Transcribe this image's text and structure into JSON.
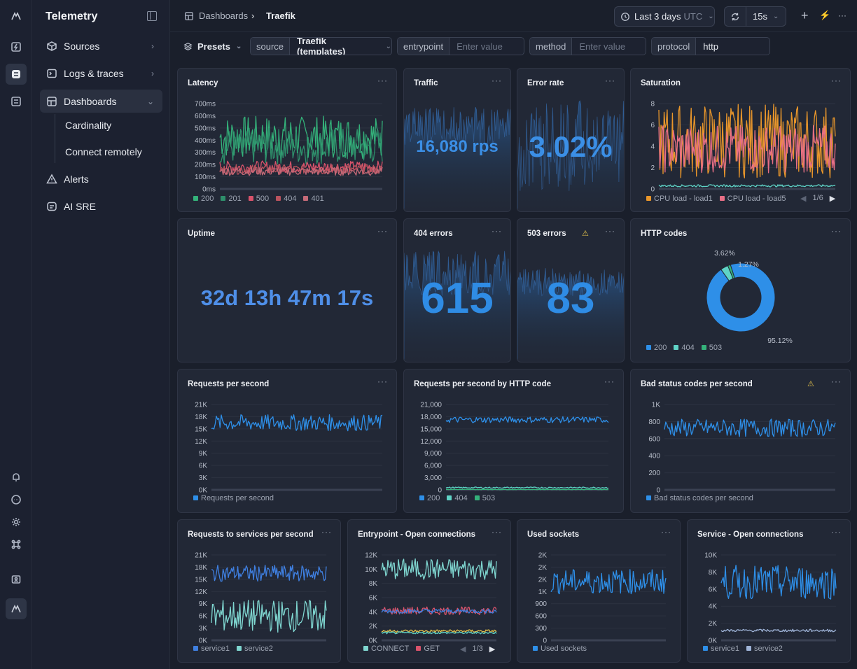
{
  "app": {
    "title": "Telemetry"
  },
  "nav": {
    "items": [
      {
        "label": "Sources",
        "chevron": "›"
      },
      {
        "label": "Logs & traces",
        "chevron": "›"
      },
      {
        "label": "Dashboards",
        "chevron": "⌄"
      },
      {
        "label": "Alerts"
      },
      {
        "label": "AI SRE"
      }
    ],
    "sub": [
      "Cardinality",
      "Connect remotely"
    ]
  },
  "breadcrumb": {
    "root": "Dashboards",
    "sep": "›",
    "current": "Traefik"
  },
  "toolbar": {
    "time": "Last 3 days",
    "tz": "UTC",
    "refresh": "15s",
    "plus": "+",
    "bolt": "⚡",
    "more": "···"
  },
  "filters": {
    "presets": "Presets",
    "chev": "⌄",
    "items": [
      {
        "key": "source",
        "value": "Traefik (templates)",
        "placeholder": ""
      },
      {
        "key": "entrypoint",
        "value": "",
        "placeholder": "Enter value"
      },
      {
        "key": "method",
        "value": "",
        "placeholder": "Enter value"
      },
      {
        "key": "protocol",
        "value": "http",
        "placeholder": ""
      }
    ]
  },
  "colors": {
    "blue": "#3b8fe6",
    "teal": "#5fd3c6",
    "green": "#34b27a",
    "red": "#d9536b",
    "orange": "#e8962b",
    "pink": "#e86f86",
    "yellow": "#e0c04a",
    "navy": "#2d6fd1"
  },
  "panels": {
    "latency": {
      "title": "Latency",
      "menu": "···"
    },
    "traffic": {
      "title": "Traffic",
      "menu": "···",
      "value": "16,080 rps"
    },
    "error_rate": {
      "title": "Error rate",
      "menu": "···",
      "value": "3.02%"
    },
    "saturation": {
      "title": "Saturation",
      "menu": "···",
      "pager": "1/6"
    },
    "uptime": {
      "title": "Uptime",
      "menu": "···",
      "value": "32d 13h 47m 17s"
    },
    "e404": {
      "title": "404 errors",
      "menu": "···",
      "value": "615"
    },
    "e503": {
      "title": "503 errors",
      "menu": "···",
      "value": "83",
      "warn": "⚠"
    },
    "http_codes": {
      "title": "HTTP codes",
      "menu": "···"
    },
    "rps": {
      "title": "Requests per second",
      "menu": "···"
    },
    "rps_code": {
      "title": "Requests per second by HTTP code",
      "menu": "···"
    },
    "bad": {
      "title": "Bad status codes per second",
      "menu": "···",
      "warn": "⚠"
    },
    "svc_rps": {
      "title": "Requests to services per second",
      "menu": "···"
    },
    "entry_conn": {
      "title": "Entrypoint - Open connections",
      "menu": "···",
      "pager": "1/3"
    },
    "sockets": {
      "title": "Used sockets",
      "menu": "···"
    },
    "svc_conn": {
      "title": "Service - Open connections",
      "menu": "···"
    }
  },
  "chart_data": [
    {
      "id": "latency",
      "type": "line",
      "title": "Latency",
      "ylim": [
        0,
        700
      ],
      "yticks": [
        "0ms",
        "100ms",
        "200ms",
        "300ms",
        "400ms",
        "500ms",
        "600ms",
        "700ms"
      ],
      "series": [
        {
          "name": "200",
          "level": [
            250,
            600
          ],
          "color": "#34b27a"
        },
        {
          "name": "201",
          "level": [
            200,
            500
          ],
          "color": "#2e8f6b"
        },
        {
          "name": "500",
          "level": [
            130,
            230
          ],
          "color": "#d9536b"
        },
        {
          "name": "404",
          "level": [
            120,
            200
          ],
          "color": "#b9535e"
        },
        {
          "name": "401",
          "level": [
            110,
            180
          ],
          "color": "#c46a78"
        }
      ]
    },
    {
      "id": "saturation",
      "type": "line",
      "title": "Saturation",
      "ylim": [
        0,
        8
      ],
      "yticks": [
        "0",
        "2",
        "4",
        "6",
        "8"
      ],
      "series": [
        {
          "name": "CPU load - load1",
          "level": [
            1,
            8
          ],
          "color": "#e8962b"
        },
        {
          "name": "CPU load - load5",
          "level": [
            1.5,
            6
          ],
          "color": "#e86f86"
        },
        {
          "name": "",
          "level": [
            0.2,
            0.4
          ],
          "color": "#5fd3c6"
        }
      ]
    },
    {
      "id": "http_codes",
      "type": "pie",
      "title": "HTTP codes",
      "slices": [
        {
          "name": "200",
          "value": 95.12,
          "color": "#2e8fe8"
        },
        {
          "name": "404",
          "value": 3.62,
          "color": "#5fd3c6"
        },
        {
          "name": "503",
          "value": 1.27,
          "color": "#34b27a"
        }
      ],
      "labels": [
        "3.62%",
        "1.27%",
        "95.12%"
      ]
    },
    {
      "id": "rps",
      "type": "line",
      "title": "Requests per second",
      "ylim": [
        0,
        21000
      ],
      "yticks": [
        "0K",
        "3K",
        "6K",
        "9K",
        "12K",
        "15K",
        "18K",
        "21K"
      ],
      "series": [
        {
          "name": "Requests per second",
          "level": [
            14500,
            18500
          ],
          "color": "#2e8fe8"
        }
      ]
    },
    {
      "id": "rps_code",
      "type": "line",
      "title": "Requests per second by HTTP code",
      "ylim": [
        0,
        21000
      ],
      "yticks": [
        "0",
        "3,000",
        "6,000",
        "9,000",
        "12,000",
        "15,000",
        "18,000",
        "21,000"
      ],
      "series": [
        {
          "name": "200",
          "level": [
            16500,
            18000
          ],
          "color": "#2e8fe8"
        },
        {
          "name": "404",
          "level": [
            400,
            700
          ],
          "color": "#5fd3c6"
        },
        {
          "name": "503",
          "level": [
            50,
            150
          ],
          "color": "#34b27a"
        }
      ]
    },
    {
      "id": "bad",
      "type": "line",
      "title": "Bad status codes per second",
      "ylim": [
        0,
        1000
      ],
      "yticks": [
        "0",
        "200",
        "400",
        "600",
        "800",
        "1K"
      ],
      "series": [
        {
          "name": "Bad status codes per second",
          "level": [
            620,
            830
          ],
          "color": "#2e8fe8"
        }
      ]
    },
    {
      "id": "svc_rps",
      "type": "line",
      "title": "Requests to services per second",
      "ylim": [
        0,
        21000
      ],
      "yticks": [
        "0K",
        "3K",
        "6K",
        "9K",
        "12K",
        "15K",
        "18K",
        "21K"
      ],
      "series": [
        {
          "name": "service1",
          "level": [
            14500,
            18500
          ],
          "color": "#3f7fe0"
        },
        {
          "name": "service2",
          "level": [
            2000,
            10000
          ],
          "color": "#7fd6d0"
        }
      ]
    },
    {
      "id": "entry_conn",
      "type": "line",
      "title": "Entrypoint - Open connections",
      "ylim": [
        0,
        12000
      ],
      "yticks": [
        "0K",
        "2K",
        "4K",
        "6K",
        "8K",
        "10K",
        "12K"
      ],
      "series": [
        {
          "name": "CONNECT",
          "level": [
            8500,
            11500
          ],
          "color": "#7fd6d0"
        },
        {
          "name": "GET",
          "level": [
            3600,
            4700
          ],
          "color": "#d9536b"
        },
        {
          "name": "",
          "level": [
            3800,
            4400
          ],
          "color": "#3f7fe0"
        },
        {
          "name": "",
          "level": [
            1100,
            1500
          ],
          "color": "#e0c04a"
        },
        {
          "name": "",
          "level": [
            900,
            1200
          ],
          "color": "#5fd3c6"
        }
      ]
    },
    {
      "id": "sockets",
      "type": "line",
      "title": "Used sockets",
      "ylim": [
        0,
        2400
      ],
      "yticks": [
        "0",
        "300",
        "600",
        "900",
        "1K",
        "2K",
        "2K",
        "2K"
      ],
      "series": [
        {
          "name": "Used sockets",
          "level": [
            1300,
            2000
          ],
          "color": "#2e8fe8"
        }
      ]
    },
    {
      "id": "svc_conn",
      "type": "line",
      "title": "Service - Open connections",
      "ylim": [
        0,
        10000
      ],
      "yticks": [
        "0K",
        "2K",
        "4K",
        "6K",
        "8K",
        "10K"
      ],
      "series": [
        {
          "name": "service1",
          "level": [
            4800,
            8800
          ],
          "color": "#2e8fe8"
        },
        {
          "name": "service2",
          "level": [
            1000,
            1300
          ],
          "color": "#9fb4d8"
        }
      ]
    }
  ]
}
